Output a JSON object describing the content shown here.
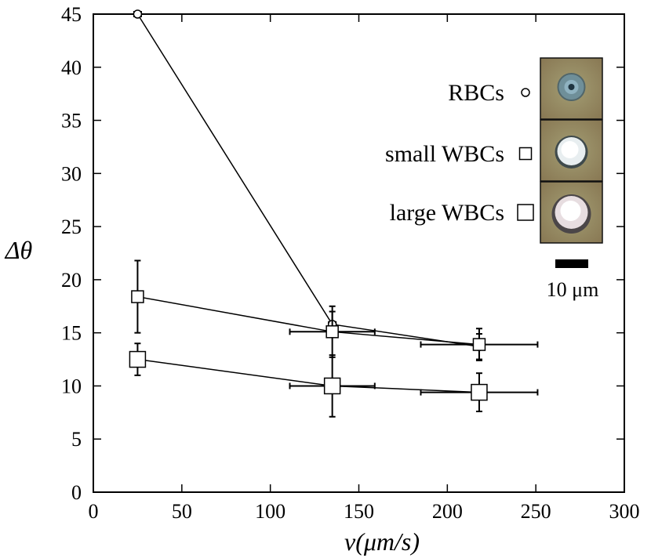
{
  "chart_data": {
    "type": "scatter",
    "xlabel": "v(μm/s)",
    "ylabel": "Δθ",
    "xlim": [
      0,
      300
    ],
    "ylim": [
      0,
      45
    ],
    "xticks": [
      0,
      50,
      100,
      150,
      200,
      250,
      300
    ],
    "yticks": [
      0,
      5,
      10,
      15,
      20,
      25,
      30,
      35,
      40,
      45
    ],
    "series": [
      {
        "name": "RBCs",
        "marker": "small-circle",
        "x": [
          25,
          135,
          218
        ],
        "y": [
          45,
          15.8,
          13.7
        ],
        "xerr": [
          2,
          2,
          2
        ],
        "yerr": [
          0,
          1.2,
          1.2
        ]
      },
      {
        "name": "small WBCs",
        "marker": "small-square",
        "x": [
          25,
          135,
          218
        ],
        "y": [
          18.4,
          15.1,
          13.9
        ],
        "xerr": [
          0,
          24,
          33
        ],
        "yerr": [
          3.4,
          2.4,
          1.5
        ]
      },
      {
        "name": "large WBCs",
        "marker": "large-square",
        "x": [
          25,
          135,
          218
        ],
        "y": [
          12.5,
          10.0,
          9.4
        ],
        "xerr": [
          0,
          24,
          33
        ],
        "yerr": [
          1.5,
          2.9,
          1.8
        ]
      }
    ],
    "legend_position": "top-right",
    "legend_labels": [
      "RBCs",
      "small WBCs",
      "large WBCs"
    ],
    "scale_bar_label": "10 μm",
    "grid": false
  }
}
